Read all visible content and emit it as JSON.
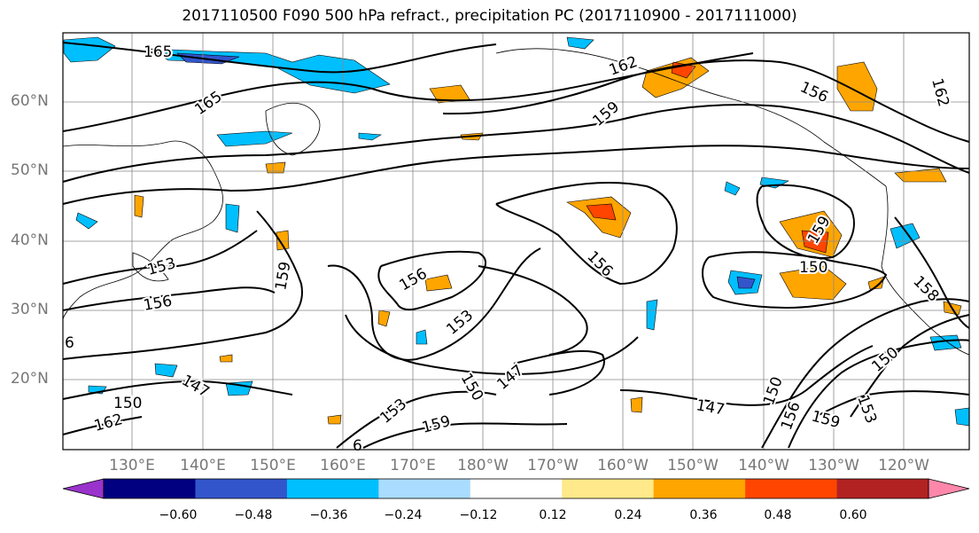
{
  "title": "2017110500 F090 500 hPa refract., precipitation PC (2017110900 - 2017111000)",
  "lat_labels": [
    "60°N",
    "50°N",
    "40°N",
    "30°N",
    "20°N"
  ],
  "lon_labels": [
    "130°E",
    "140°E",
    "150°E",
    "160°E",
    "170°E",
    "180°W",
    "170°W",
    "160°W",
    "150°W",
    "140°W",
    "130°W",
    "120°W"
  ],
  "colorbar": {
    "colors": [
      "#9933cc",
      "#000080",
      "#3355cc",
      "#00bfff",
      "#aadcff",
      "#ffffff",
      "#ffe98a",
      "#ffa500",
      "#ff4500",
      "#b22222",
      "#ff88aa"
    ],
    "ticks": [
      "−0.60",
      "−0.48",
      "−0.36",
      "−0.24",
      "−0.12",
      "0.12",
      "0.24",
      "0.36",
      "0.48",
      "0.60"
    ]
  },
  "contour_labels": [
    "165",
    "165",
    "162",
    "159",
    "156",
    "162",
    "153",
    "156",
    "159",
    "156",
    "153",
    "156",
    "150",
    "147",
    "150",
    "159",
    "150",
    "158",
    "147",
    "147",
    "150",
    "156",
    "159",
    "153",
    "159",
    "153",
    "150",
    "6",
    "162",
    "6"
  ]
}
